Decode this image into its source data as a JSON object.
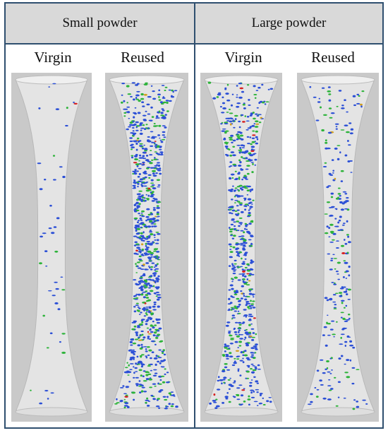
{
  "figure": {
    "groups": [
      {
        "label": "Small powder",
        "columns": [
          {
            "label": "Virgin",
            "defect_density": "sparse",
            "dots": 45
          },
          {
            "label": "Reused",
            "defect_density": "dense",
            "dots": 900
          }
        ]
      },
      {
        "label": "Large powder",
        "columns": [
          {
            "label": "Virgin",
            "defect_density": "dense",
            "dots": 700
          },
          {
            "label": "Reused",
            "defect_density": "moderate",
            "dots": 260
          }
        ]
      }
    ],
    "colors": {
      "panel_bg": "#c9c9c9",
      "specimen": "#e4e4e4",
      "border": "#2f4f6f",
      "header_bg": "#d9d9d9",
      "dot_blue": "#2b4fd6",
      "dot_green": "#2db33a",
      "dot_red": "#d62020",
      "dot_orange": "#d2a020"
    }
  }
}
